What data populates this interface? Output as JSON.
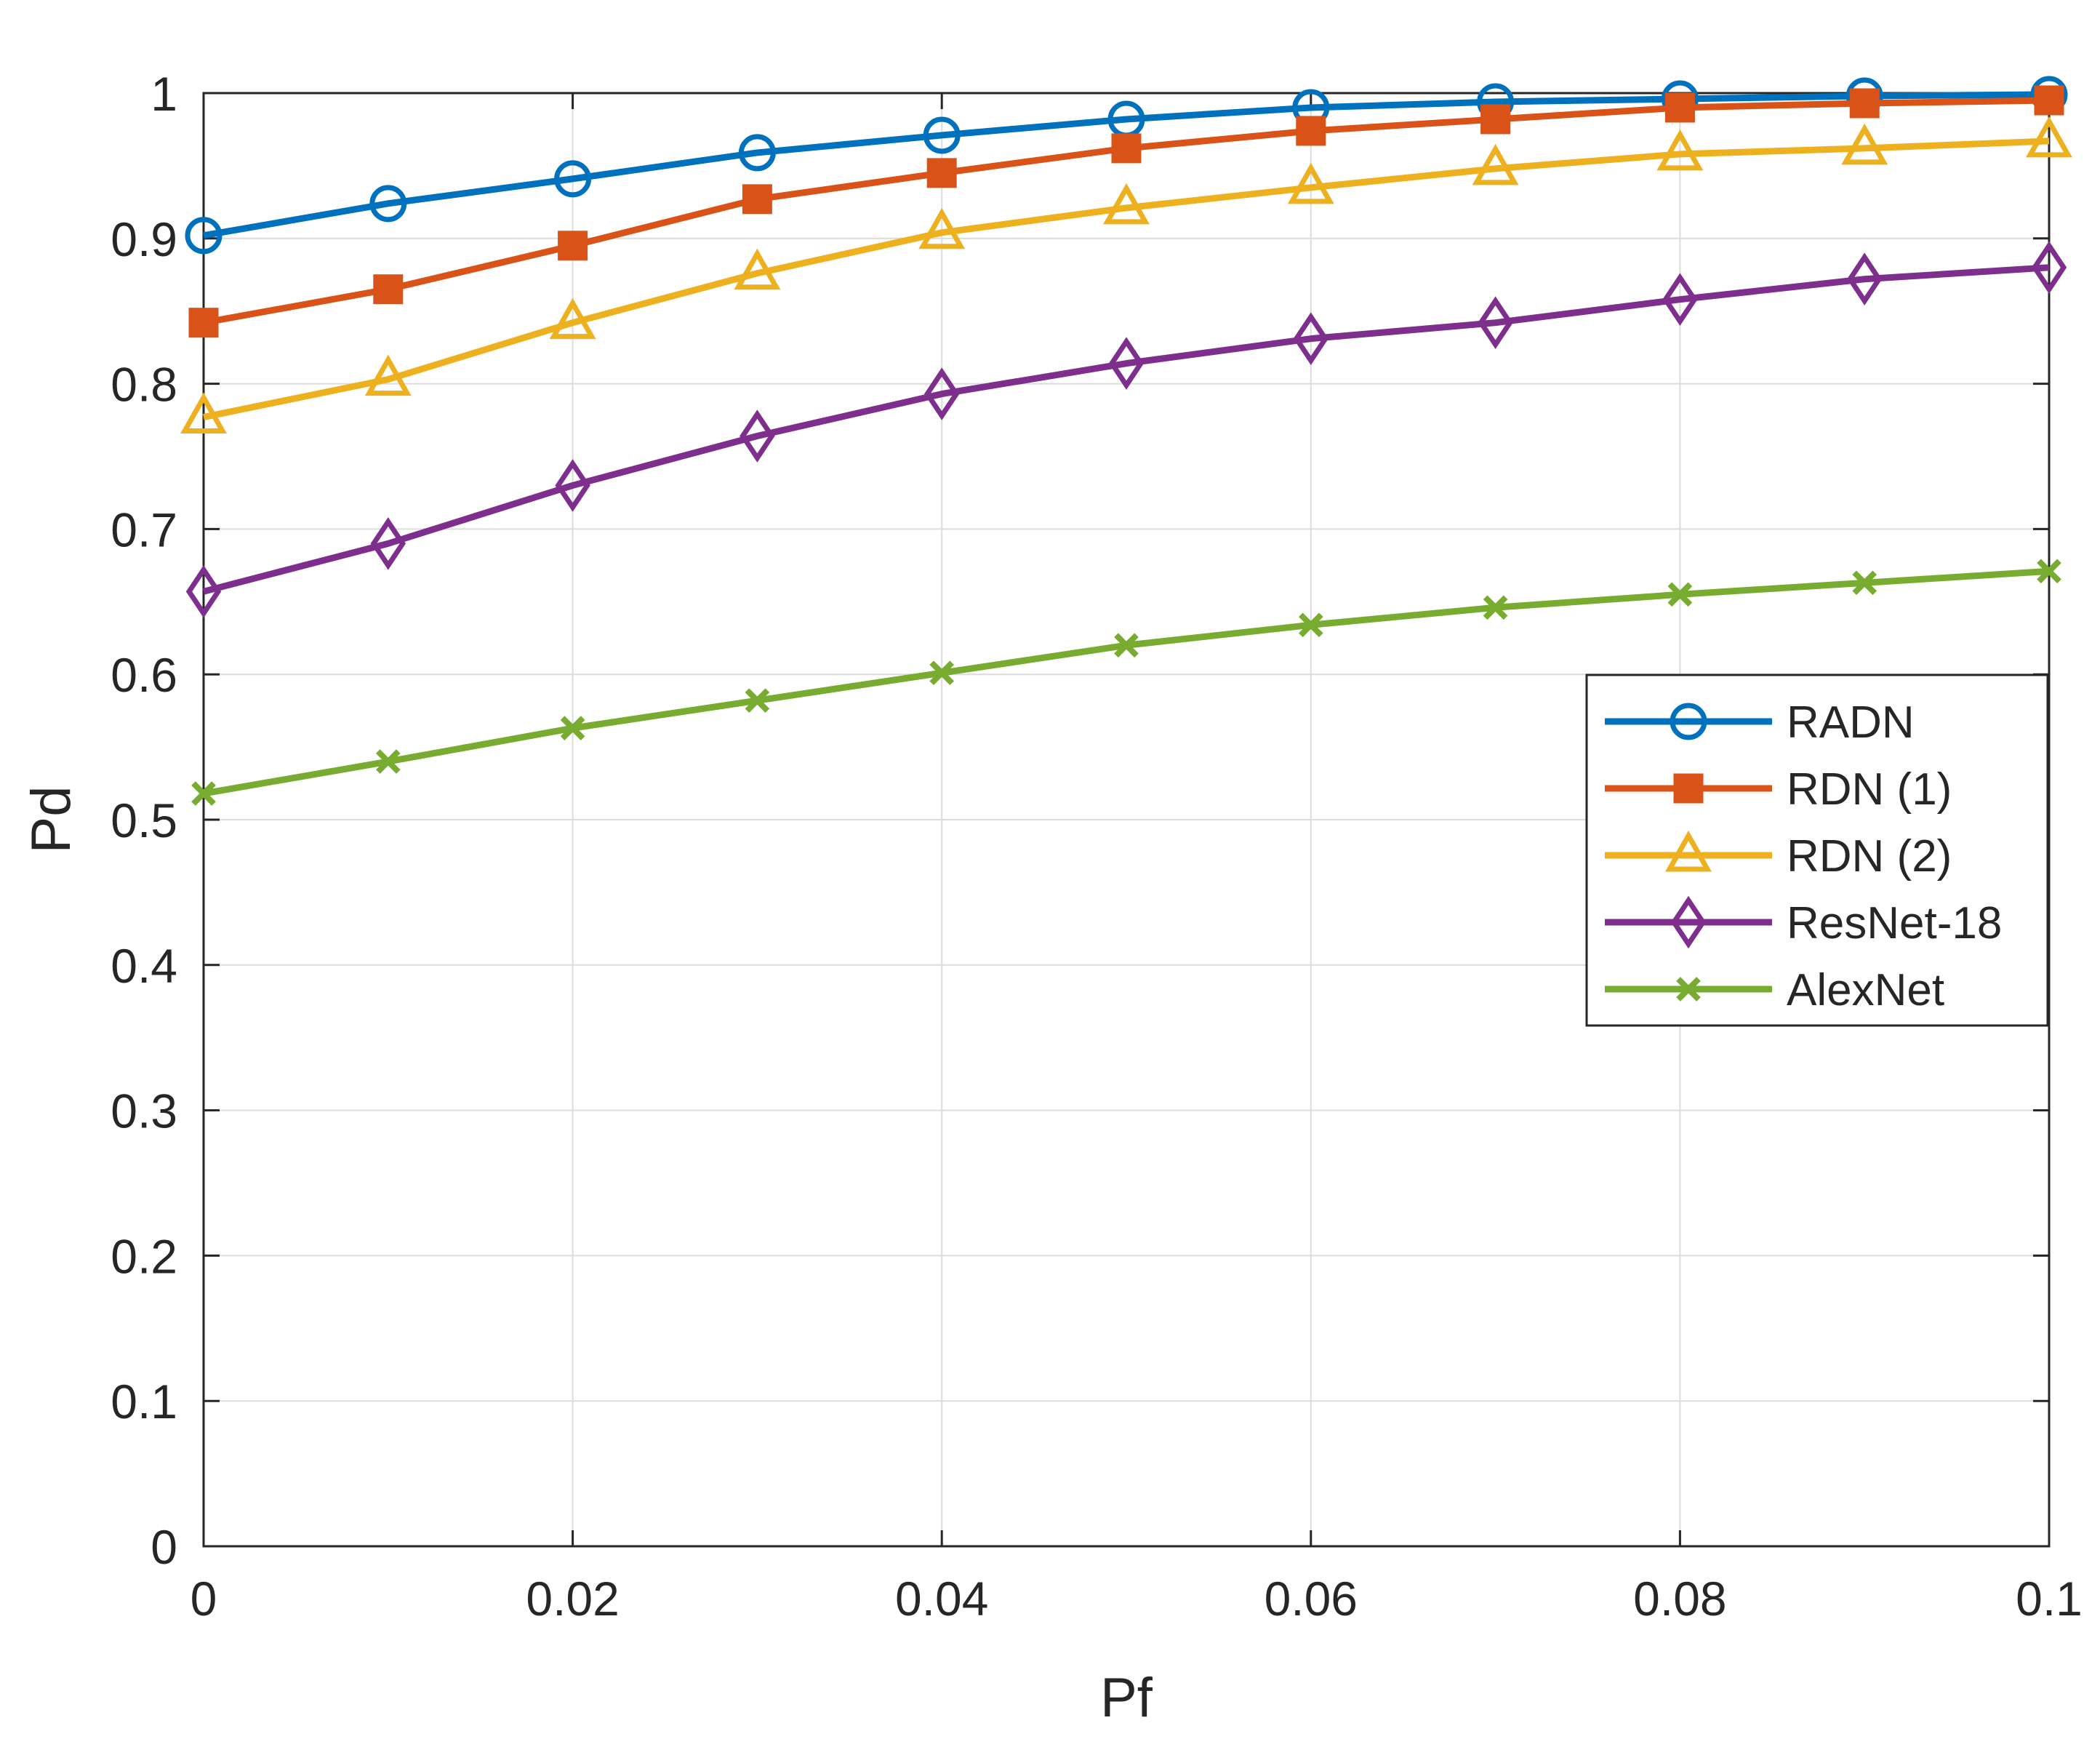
{
  "chart_data": {
    "type": "line",
    "title": "",
    "xlabel": "Pf",
    "ylabel": "Pd",
    "xlim": [
      0,
      0.1
    ],
    "ylim": [
      0,
      1
    ],
    "grid": true,
    "legend_position": "right",
    "x_ticks": [
      "0",
      "0.02",
      "0.04",
      "0.06",
      "0.08",
      "0.1"
    ],
    "y_ticks": [
      "0",
      "0.1",
      "0.2",
      "0.3",
      "0.4",
      "0.5",
      "0.6",
      "0.7",
      "0.8",
      "0.9",
      "1"
    ],
    "x": [
      0,
      0.01,
      0.02,
      0.03,
      0.04,
      0.05,
      0.06,
      0.07,
      0.08,
      0.09,
      0.1
    ],
    "series": [
      {
        "name": "RADN",
        "color": "#0072BD",
        "marker": "circle",
        "values": [
          0.902,
          0.924,
          0.941,
          0.959,
          0.971,
          0.982,
          0.99,
          0.994,
          0.996,
          0.998,
          0.999
        ]
      },
      {
        "name": "RDN (1)",
        "color": "#D95319",
        "marker": "square",
        "values": [
          0.842,
          0.865,
          0.895,
          0.927,
          0.945,
          0.962,
          0.974,
          0.982,
          0.99,
          0.993,
          0.995
        ]
      },
      {
        "name": "RDN (2)",
        "color": "#EDB120",
        "marker": "triangle",
        "values": [
          0.777,
          0.803,
          0.842,
          0.876,
          0.904,
          0.921,
          0.935,
          0.948,
          0.958,
          0.962,
          0.967
        ]
      },
      {
        "name": "ResNet-18",
        "color": "#7E2F8E",
        "marker": "diamond",
        "values": [
          0.657,
          0.69,
          0.73,
          0.764,
          0.793,
          0.814,
          0.831,
          0.842,
          0.858,
          0.872,
          0.88
        ]
      },
      {
        "name": "AlexNet",
        "color": "#77AC30",
        "marker": "x",
        "values": [
          0.518,
          0.54,
          0.563,
          0.582,
          0.601,
          0.62,
          0.634,
          0.646,
          0.655,
          0.663,
          0.671
        ]
      }
    ]
  }
}
